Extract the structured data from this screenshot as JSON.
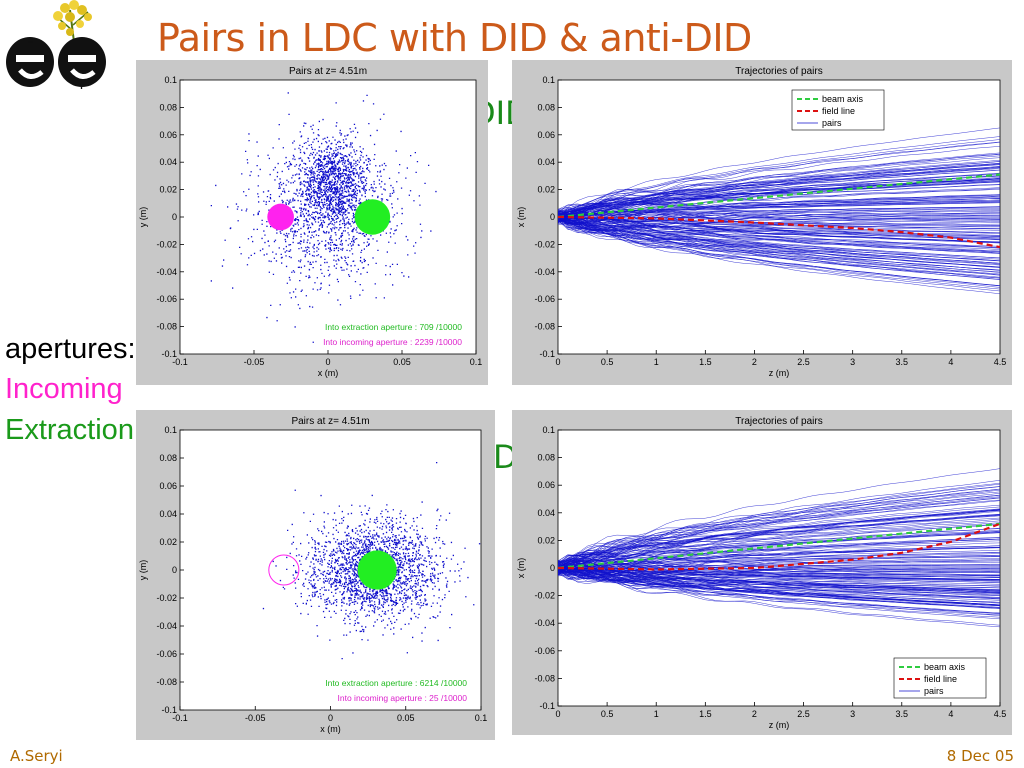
{
  "slide": {
    "title": "Pairs in LDC with DID & anti-DID",
    "label_did": "DID",
    "label_antidid": "anti-DID",
    "apertures_label": "apertures:",
    "incoming_label": "Incoming",
    "extraction_label": "Extraction",
    "footer_left": "A.Seryi",
    "footer_right": "8 Dec 05",
    "logo_text": "ee"
  },
  "colors": {
    "title": "#cc5a1a",
    "did_label": "#1a8a1a",
    "incoming": "#ff22cc",
    "extraction": "#1a9a1a",
    "points": "#1010cc",
    "beam_axis": "#2ecc40",
    "field_line": "#dd1111"
  },
  "chart_data": [
    {
      "type": "scatter",
      "title": "Pairs at z= 4.51m",
      "xlabel": "x (m)",
      "ylabel": "y (m)",
      "xlim": [
        -0.1,
        0.1
      ],
      "ylim": [
        -0.1,
        0.1
      ],
      "xticks": [
        "-0.1",
        "-0.05",
        "0",
        "0.05",
        "0.1"
      ],
      "yticks": [
        "0.1",
        "0.08",
        "0.06",
        "0.04",
        "0.02",
        "0",
        "-0.02",
        "-0.04",
        "-0.06",
        "-0.08",
        "-0.1"
      ],
      "series": [
        {
          "points_estimated": 2500,
          "center": [
            -0.002,
            0.012
          ],
          "spread": [
            0.045,
            0.05
          ]
        }
      ],
      "apertures": [
        {
          "kind": "incoming",
          "center": [
            -0.032,
            0.0
          ],
          "radius": 0.009,
          "filled": true
        },
        {
          "kind": "extraction",
          "center": [
            0.03,
            0.0
          ],
          "radius": 0.012,
          "filled": true
        }
      ],
      "annotations": [
        {
          "text": "Into extraction aperture : 709 /10000",
          "color": "#22bb22"
        },
        {
          "text": "Into incoming aperture : 2239 /10000",
          "color": "#dd22cc"
        }
      ]
    },
    {
      "type": "line",
      "title": "Trajectories of pairs",
      "xlabel": "z (m)",
      "ylabel": "x (m)",
      "xlim": [
        0,
        4.5
      ],
      "ylim": [
        -0.1,
        0.1
      ],
      "xticks": [
        "0",
        "0.5",
        "1",
        "1.5",
        "2",
        "2.5",
        "3",
        "3.5",
        "4",
        "4.5"
      ],
      "yticks": [
        "0.1",
        "0.08",
        "0.06",
        "0.04",
        "0.02",
        "0",
        "-0.02",
        "-0.04",
        "-0.06",
        "-0.08",
        "-0.1"
      ],
      "legend": [
        "beam axis",
        "field line",
        "pairs"
      ],
      "legend_position": "top-right",
      "series": [
        {
          "name": "beam axis",
          "x": [
            0,
            4.5
          ],
          "y": [
            0,
            0.031
          ]
        },
        {
          "name": "field line",
          "x": [
            0,
            1,
            2,
            3,
            3.5,
            4,
            4.5
          ],
          "y": [
            0,
            -0.001,
            -0.004,
            -0.008,
            -0.011,
            -0.015,
            -0.022
          ]
        },
        {
          "name": "pairs",
          "upper_envelope": 0.065,
          "lower_envelope": -0.065
        }
      ]
    },
    {
      "type": "scatter",
      "title": "Pairs at z= 4.51m",
      "xlabel": "x (m)",
      "ylabel": "y (m)",
      "xlim": [
        -0.1,
        0.1
      ],
      "ylim": [
        -0.1,
        0.1
      ],
      "xticks": [
        "-0.1",
        "-0.05",
        "0",
        "0.05",
        "0.1"
      ],
      "yticks": [
        "0.1",
        "0.08",
        "0.06",
        "0.04",
        "0.02",
        "0",
        "-0.02",
        "-0.04",
        "-0.06",
        "-0.08",
        "-0.1"
      ],
      "series": [
        {
          "points_estimated": 2500,
          "center": [
            0.028,
            0.0
          ],
          "spread": [
            0.05,
            0.045
          ]
        }
      ],
      "apertures": [
        {
          "kind": "incoming",
          "center": [
            -0.031,
            0.0
          ],
          "radius": 0.01,
          "filled": false
        },
        {
          "kind": "extraction",
          "center": [
            0.031,
            0.0
          ],
          "radius": 0.013,
          "filled": true
        }
      ],
      "annotations": [
        {
          "text": "Into extraction aperture : 6214 /10000",
          "color": "#22bb22"
        },
        {
          "text": "Into incoming aperture : 25 /10000",
          "color": "#dd22cc"
        }
      ]
    },
    {
      "type": "line",
      "title": "Trajectories of pairs",
      "xlabel": "z (m)",
      "ylabel": "x (m)",
      "xlim": [
        0,
        4.5
      ],
      "ylim": [
        -0.1,
        0.1
      ],
      "xticks": [
        "0",
        "0.5",
        "1",
        "1.5",
        "2",
        "2.5",
        "3",
        "3.5",
        "4",
        "4.5"
      ],
      "yticks": [
        "0.1",
        "0.08",
        "0.06",
        "0.04",
        "0.02",
        "0",
        "-0.02",
        "-0.04",
        "-0.06",
        "-0.08",
        "-0.1"
      ],
      "legend": [
        "beam axis",
        "field line",
        "pairs"
      ],
      "legend_position": "bottom-right",
      "series": [
        {
          "name": "beam axis",
          "x": [
            0,
            4.5
          ],
          "y": [
            0,
            0.032
          ]
        },
        {
          "name": "field line",
          "x": [
            0,
            1,
            2,
            3,
            3.5,
            4,
            4.5
          ],
          "y": [
            0,
            -0.001,
            0.0,
            0.006,
            0.011,
            0.019,
            0.032
          ]
        },
        {
          "name": "pairs",
          "upper_envelope": 0.075,
          "lower_envelope": -0.045
        }
      ]
    }
  ]
}
